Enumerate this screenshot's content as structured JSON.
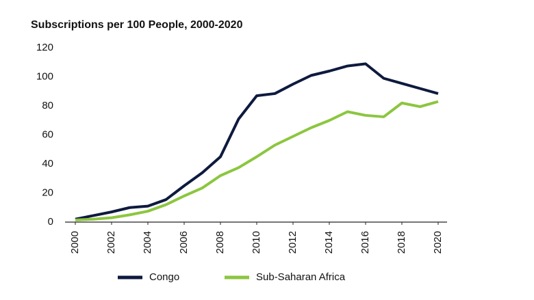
{
  "chart_data": {
    "type": "line",
    "title": "Subscriptions per 100 People, 2000-2020",
    "x": [
      2000,
      2001,
      2002,
      2003,
      2004,
      2005,
      2006,
      2007,
      2008,
      2009,
      2010,
      2011,
      2012,
      2013,
      2014,
      2015,
      2016,
      2017,
      2018,
      2019,
      2020
    ],
    "series": [
      {
        "name": "Congo",
        "color": "#0e1a3e",
        "values": [
          2,
          4.5,
          7,
          10,
          11,
          15.5,
          25,
          34,
          45,
          71,
          87,
          88.5,
          95,
          101,
          104,
          107.5,
          109,
          99,
          95.5,
          92,
          88.5
        ]
      },
      {
        "name": "Sub-Saharan Africa",
        "color": "#8cc63f",
        "values": [
          1.5,
          2,
          3,
          5,
          7.5,
          12,
          18,
          23.5,
          32,
          37.5,
          45,
          53,
          59,
          65,
          70,
          76,
          73.5,
          72.5,
          82,
          79.5,
          83
        ]
      }
    ],
    "xlim": [
      2000,
      2020
    ],
    "xticks": [
      2000,
      2002,
      2004,
      2006,
      2008,
      2010,
      2012,
      2014,
      2016,
      2018,
      2020
    ],
    "ylim": [
      0,
      120
    ],
    "yticks": [
      0,
      20,
      40,
      60,
      80,
      100,
      120
    ],
    "grid": false,
    "legend": "bottom"
  }
}
